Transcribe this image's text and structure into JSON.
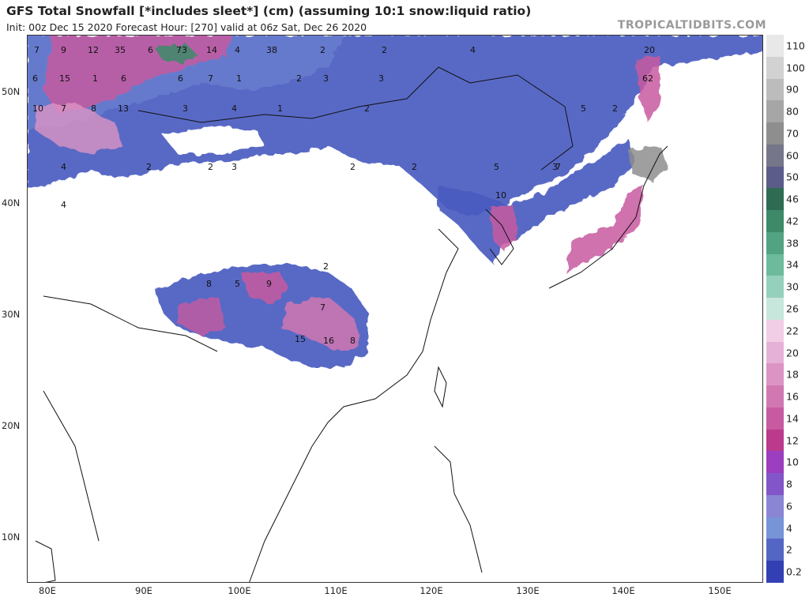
{
  "header": {
    "title": "GFS Total Snowfall [*includes sleet*] (cm) (assuming 10:1 snow:liquid ratio)",
    "subtitle": "Init: 00z Dec 15 2020   Forecast Hour: [270]   valid at 06z Sat, Dec 26 2020",
    "brand": "TROPICALTIDBITS.COM"
  },
  "axes": {
    "lat_labels": [
      "50N",
      "40N",
      "30N",
      "20N",
      "10N"
    ],
    "lon_labels": [
      "80E",
      "90E",
      "100E",
      "110E",
      "120E",
      "130E",
      "140E",
      "150E"
    ]
  },
  "legend": {
    "levels": [
      "110",
      "100",
      "90",
      "80",
      "70",
      "60",
      "50",
      "46",
      "42",
      "38",
      "34",
      "30",
      "26",
      "22",
      "20",
      "18",
      "16",
      "14",
      "12",
      "10",
      "8",
      "6",
      "4",
      "2",
      "0.2"
    ],
    "colors": [
      "#e8e8e8",
      "#d2d2d2",
      "#bcbcbc",
      "#a6a6a6",
      "#8e8e8e",
      "#76768a",
      "#5c5c8a",
      "#2f6b52",
      "#3e8a68",
      "#52a382",
      "#6dbb9c",
      "#95d0bd",
      "#c7e6dc",
      "#f2cde6",
      "#e6b1d6",
      "#dc94c4",
      "#d178b2",
      "#c75aa0",
      "#bb3a8c",
      "#9b3ec0",
      "#8256c8",
      "#8a86d4",
      "#7794d6",
      "#5466c4",
      "#3340b4"
    ]
  },
  "snow_labels": [
    {
      "t": "7"
    },
    {
      "t": "9"
    },
    {
      "t": "12"
    },
    {
      "t": "35"
    },
    {
      "t": "6"
    },
    {
      "t": "73"
    },
    {
      "t": "14"
    },
    {
      "t": "4"
    },
    {
      "t": "38"
    },
    {
      "t": "2"
    },
    {
      "t": "2"
    },
    {
      "t": "4"
    },
    {
      "t": "20"
    },
    {
      "t": "6"
    },
    {
      "t": "15"
    },
    {
      "t": "1"
    },
    {
      "t": "6"
    },
    {
      "t": "6"
    },
    {
      "t": "7"
    },
    {
      "t": "1"
    },
    {
      "t": "2"
    },
    {
      "t": "3"
    },
    {
      "t": "3"
    },
    {
      "t": "62"
    },
    {
      "t": "10"
    },
    {
      "t": "7"
    },
    {
      "t": "8"
    },
    {
      "t": "13"
    },
    {
      "t": "3"
    },
    {
      "t": "4"
    },
    {
      "t": "1"
    },
    {
      "t": "2"
    },
    {
      "t": "5"
    },
    {
      "t": "2"
    },
    {
      "t": "4"
    },
    {
      "t": "2"
    },
    {
      "t": "2"
    },
    {
      "t": "3"
    },
    {
      "t": "2"
    },
    {
      "t": "7"
    },
    {
      "t": "2"
    },
    {
      "t": "5"
    },
    {
      "t": "3"
    },
    {
      "t": "4"
    },
    {
      "t": "10"
    },
    {
      "t": "8"
    },
    {
      "t": "5"
    },
    {
      "t": "9"
    },
    {
      "t": "7"
    },
    {
      "t": "15"
    },
    {
      "t": "16"
    },
    {
      "t": "8"
    },
    {
      "t": "2"
    }
  ]
}
